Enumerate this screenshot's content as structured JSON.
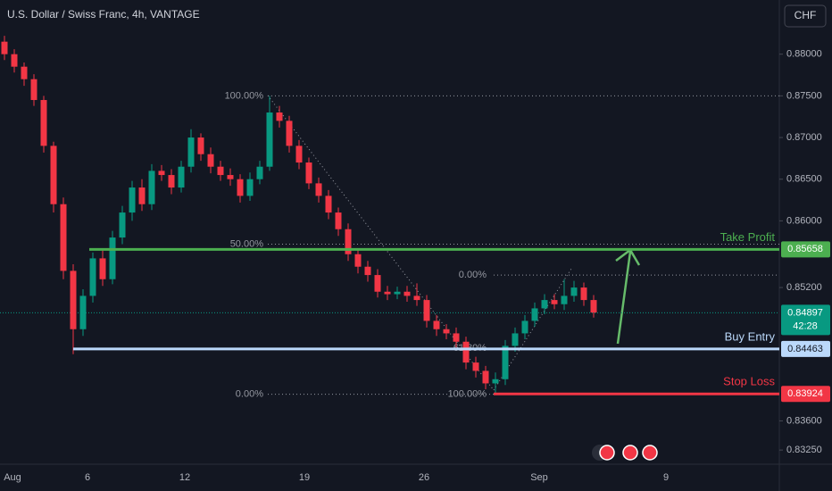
{
  "chart_data": {
    "type": "candlestick",
    "title": "U.S. Dollar / Swiss Franc, 4h, VANTAGE",
    "currency": "CHF",
    "x_labels": [
      "Aug",
      "6",
      "12",
      "19",
      "26",
      "Sep",
      "9"
    ],
    "open": [
      0.8815,
      0.88,
      0.8785,
      0.877,
      0.8745,
      0.869,
      0.862,
      0.854,
      0.847,
      0.851,
      0.8555,
      0.853,
      0.858,
      0.861,
      0.864,
      0.862,
      0.866,
      0.8655,
      0.864,
      0.8665,
      0.87,
      0.868,
      0.8665,
      0.8655,
      0.865,
      0.863,
      0.865,
      0.8665,
      0.873,
      0.872,
      0.869,
      0.867,
      0.8645,
      0.863,
      0.861,
      0.859,
      0.856,
      0.8545,
      0.8535,
      0.8515,
      0.8512,
      0.8515,
      0.851,
      0.8505,
      0.848,
      0.847,
      0.8465,
      0.8455,
      0.843,
      0.842,
      0.8405,
      0.841,
      0.845,
      0.8465,
      0.848,
      0.8495,
      0.8505,
      0.85,
      0.851,
      0.852,
      0.8505
    ],
    "high": [
      0.8822,
      0.8806,
      0.879,
      0.8776,
      0.875,
      0.8695,
      0.8628,
      0.8548,
      0.8518,
      0.8562,
      0.8565,
      0.8588,
      0.8618,
      0.8648,
      0.865,
      0.8668,
      0.8667,
      0.8662,
      0.8672,
      0.871,
      0.8705,
      0.8688,
      0.8672,
      0.8663,
      0.8656,
      0.8658,
      0.8672,
      0.875,
      0.8738,
      0.8726,
      0.8697,
      0.8676,
      0.8652,
      0.8637,
      0.8616,
      0.8597,
      0.8566,
      0.8552,
      0.8542,
      0.8522,
      0.8521,
      0.8522,
      0.8525,
      0.8511,
      0.8487,
      0.8476,
      0.8472,
      0.8461,
      0.8437,
      0.8426,
      0.8418,
      0.8457,
      0.8472,
      0.8487,
      0.8502,
      0.8512,
      0.8512,
      0.853,
      0.8528,
      0.8526,
      0.8511
    ],
    "low": [
      0.8793,
      0.8778,
      0.8762,
      0.8738,
      0.8682,
      0.861,
      0.853,
      0.844,
      0.8462,
      0.8502,
      0.8522,
      0.8524,
      0.8572,
      0.86,
      0.8612,
      0.8613,
      0.8648,
      0.8632,
      0.8634,
      0.8658,
      0.8672,
      0.8657,
      0.8648,
      0.8642,
      0.8622,
      0.8624,
      0.8644,
      0.866,
      0.8712,
      0.8682,
      0.8662,
      0.8638,
      0.8622,
      0.8602,
      0.8582,
      0.8552,
      0.8537,
      0.8527,
      0.8508,
      0.8505,
      0.8506,
      0.8503,
      0.8498,
      0.8472,
      0.8462,
      0.8458,
      0.8448,
      0.8422,
      0.8412,
      0.8398,
      0.8392,
      0.8403,
      0.8443,
      0.8458,
      0.8473,
      0.8488,
      0.8494,
      0.8493,
      0.8503,
      0.8498,
      0.8484
    ],
    "close": [
      0.88,
      0.8785,
      0.877,
      0.8745,
      0.869,
      0.862,
      0.854,
      0.847,
      0.851,
      0.8555,
      0.853,
      0.858,
      0.861,
      0.864,
      0.862,
      0.866,
      0.8655,
      0.864,
      0.8665,
      0.87,
      0.868,
      0.8665,
      0.8655,
      0.865,
      0.863,
      0.865,
      0.8665,
      0.873,
      0.872,
      0.869,
      0.867,
      0.8645,
      0.863,
      0.861,
      0.859,
      0.856,
      0.8545,
      0.8535,
      0.8515,
      0.8512,
      0.8515,
      0.851,
      0.8505,
      0.848,
      0.847,
      0.8465,
      0.8455,
      0.843,
      0.842,
      0.8405,
      0.841,
      0.845,
      0.8465,
      0.848,
      0.8495,
      0.8505,
      0.85,
      0.851,
      0.852,
      0.8505,
      0.849
    ],
    "up_color": "#089981",
    "down_color": "#f23645",
    "ylim": [
      0.8308,
      0.8865
    ],
    "yticks": [
      {
        "value": 0.88,
        "label": "0.88000"
      },
      {
        "value": 0.875,
        "label": "0.87500"
      },
      {
        "value": 0.87,
        "label": "0.87000"
      },
      {
        "value": 0.865,
        "label": "0.86500"
      },
      {
        "value": 0.86,
        "label": "0.86000"
      },
      {
        "value": 0.852,
        "label": "0.85200"
      },
      {
        "value": 0.836,
        "label": "0.83600"
      },
      {
        "value": 0.8325,
        "label": "0.83250"
      }
    ],
    "current_price": 0.84897,
    "countdown": "42:28",
    "levels": [
      {
        "name": "Take Profit",
        "price": 0.85658,
        "color": "#4caf50"
      },
      {
        "name": "Buy Entry",
        "price": 0.84463,
        "color": "#bbd9fb"
      },
      {
        "name": "Stop Loss",
        "price": 0.83924,
        "color": "#f23645"
      }
    ],
    "fibs": [
      {
        "levels": [
          {
            "label": "100.00%",
            "price": 0.875
          },
          {
            "label": "50.00%",
            "price": 0.8572
          },
          {
            "label": "0.00%",
            "price": 0.8392
          }
        ]
      },
      {
        "levels": [
          {
            "label": "0.00%",
            "price": 0.8535
          },
          {
            "label": "61.80%",
            "price": 0.8447
          },
          {
            "label": "100.00%",
            "price": 0.8392
          }
        ]
      }
    ]
  }
}
